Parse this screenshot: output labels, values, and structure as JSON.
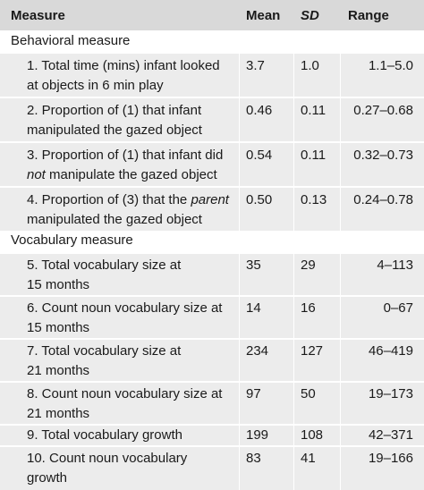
{
  "header": {
    "measure": "Measure",
    "mean": "Mean",
    "sd": "SD",
    "range": "Range"
  },
  "sections": [
    {
      "title": "Behavioral measure",
      "rows": [
        {
          "line1": "1. Total time (mins) infant looked",
          "line2": "at objects in 6 min play",
          "mean": "3.7",
          "sd": "1.0",
          "range": "1.1–5.0"
        },
        {
          "line1": "2. Proportion of (1) that infant",
          "line2": "manipulated the gazed object",
          "mean": "0.46",
          "sd": "0.11",
          "range": "0.27–0.68"
        },
        {
          "line1a": "3. Proportion of (1) that infant did",
          "line2_em": "not",
          "line2_rest": " manipulate the gazed object",
          "mean": "0.54",
          "sd": "0.11",
          "range": "0.32–0.73"
        },
        {
          "line1_pre": "4. Proportion of (3) that the ",
          "line1_em": "parent",
          "line2": "manipulated the gazed object",
          "mean": "0.50",
          "sd": "0.13",
          "range": "0.24–0.78"
        }
      ]
    },
    {
      "title": "Vocabulary measure",
      "rows": [
        {
          "line1": "5. Total vocabulary size at",
          "line2": "15 months",
          "mean": "35",
          "sd": "29",
          "range": "4–113"
        },
        {
          "line1": "6. Count noun vocabulary size at",
          "line2": "15 months",
          "mean": "14",
          "sd": "16",
          "range": "0–67"
        },
        {
          "line1": "7. Total vocabulary size at",
          "line2": "21 months",
          "mean": "234",
          "sd": "127",
          "range": "46–419"
        },
        {
          "line1": "8. Count noun vocabulary size at",
          "line2": "21 months",
          "mean": "97",
          "sd": "50",
          "range": "19–173"
        },
        {
          "line1": "9. Total vocabulary growth",
          "mean": "199",
          "sd": "108",
          "range": "42–371"
        },
        {
          "line1": "10. Count noun vocabulary",
          "line2": "growth",
          "mean": "83",
          "sd": "41",
          "range": "19–166"
        }
      ]
    }
  ],
  "colors": {
    "header_bg": "#d9d9d9",
    "row_bg": "#ececec",
    "text": "#1a1a1a"
  }
}
